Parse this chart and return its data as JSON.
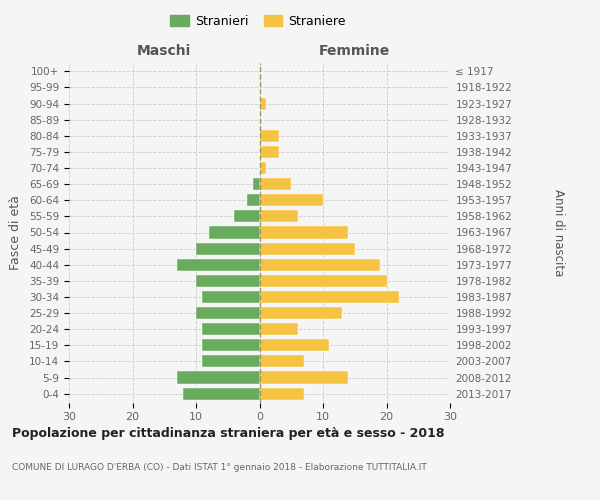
{
  "age_groups": [
    "0-4",
    "5-9",
    "10-14",
    "15-19",
    "20-24",
    "25-29",
    "30-34",
    "35-39",
    "40-44",
    "45-49",
    "50-54",
    "55-59",
    "60-64",
    "65-69",
    "70-74",
    "75-79",
    "80-84",
    "85-89",
    "90-94",
    "95-99",
    "100+"
  ],
  "birth_years": [
    "2013-2017",
    "2008-2012",
    "2003-2007",
    "1998-2002",
    "1993-1997",
    "1988-1992",
    "1983-1987",
    "1978-1982",
    "1973-1977",
    "1968-1972",
    "1963-1967",
    "1958-1962",
    "1953-1957",
    "1948-1952",
    "1943-1947",
    "1938-1942",
    "1933-1937",
    "1928-1932",
    "1923-1927",
    "1918-1922",
    "≤ 1917"
  ],
  "maschi": [
    12,
    13,
    9,
    9,
    9,
    10,
    9,
    10,
    13,
    10,
    8,
    4,
    2,
    1,
    0,
    0,
    0,
    0,
    0,
    0,
    0
  ],
  "femmine": [
    7,
    14,
    7,
    11,
    6,
    13,
    22,
    20,
    19,
    15,
    14,
    6,
    10,
    5,
    1,
    3,
    3,
    0,
    1,
    0,
    0
  ],
  "color_maschi": "#6aaa5e",
  "color_femmine": "#f5c242",
  "background_color": "#f5f5f5",
  "title": "Popolazione per cittadinanza straniera per età e sesso - 2018",
  "subtitle": "COMUNE DI LURAGO D'ERBA (CO) - Dati ISTAT 1° gennaio 2018 - Elaborazione TUTTITALIA.IT",
  "xlabel_left": "Maschi",
  "xlabel_right": "Femmine",
  "ylabel_left": "Fasce di età",
  "ylabel_right": "Anni di nascita",
  "legend_maschi": "Stranieri",
  "legend_femmine": "Straniere",
  "xlim": 30,
  "grid_color": "#cccccc",
  "dashed_line_color": "#999966",
  "label_color": "#666666",
  "header_color": "#555555",
  "title_color": "#222222"
}
